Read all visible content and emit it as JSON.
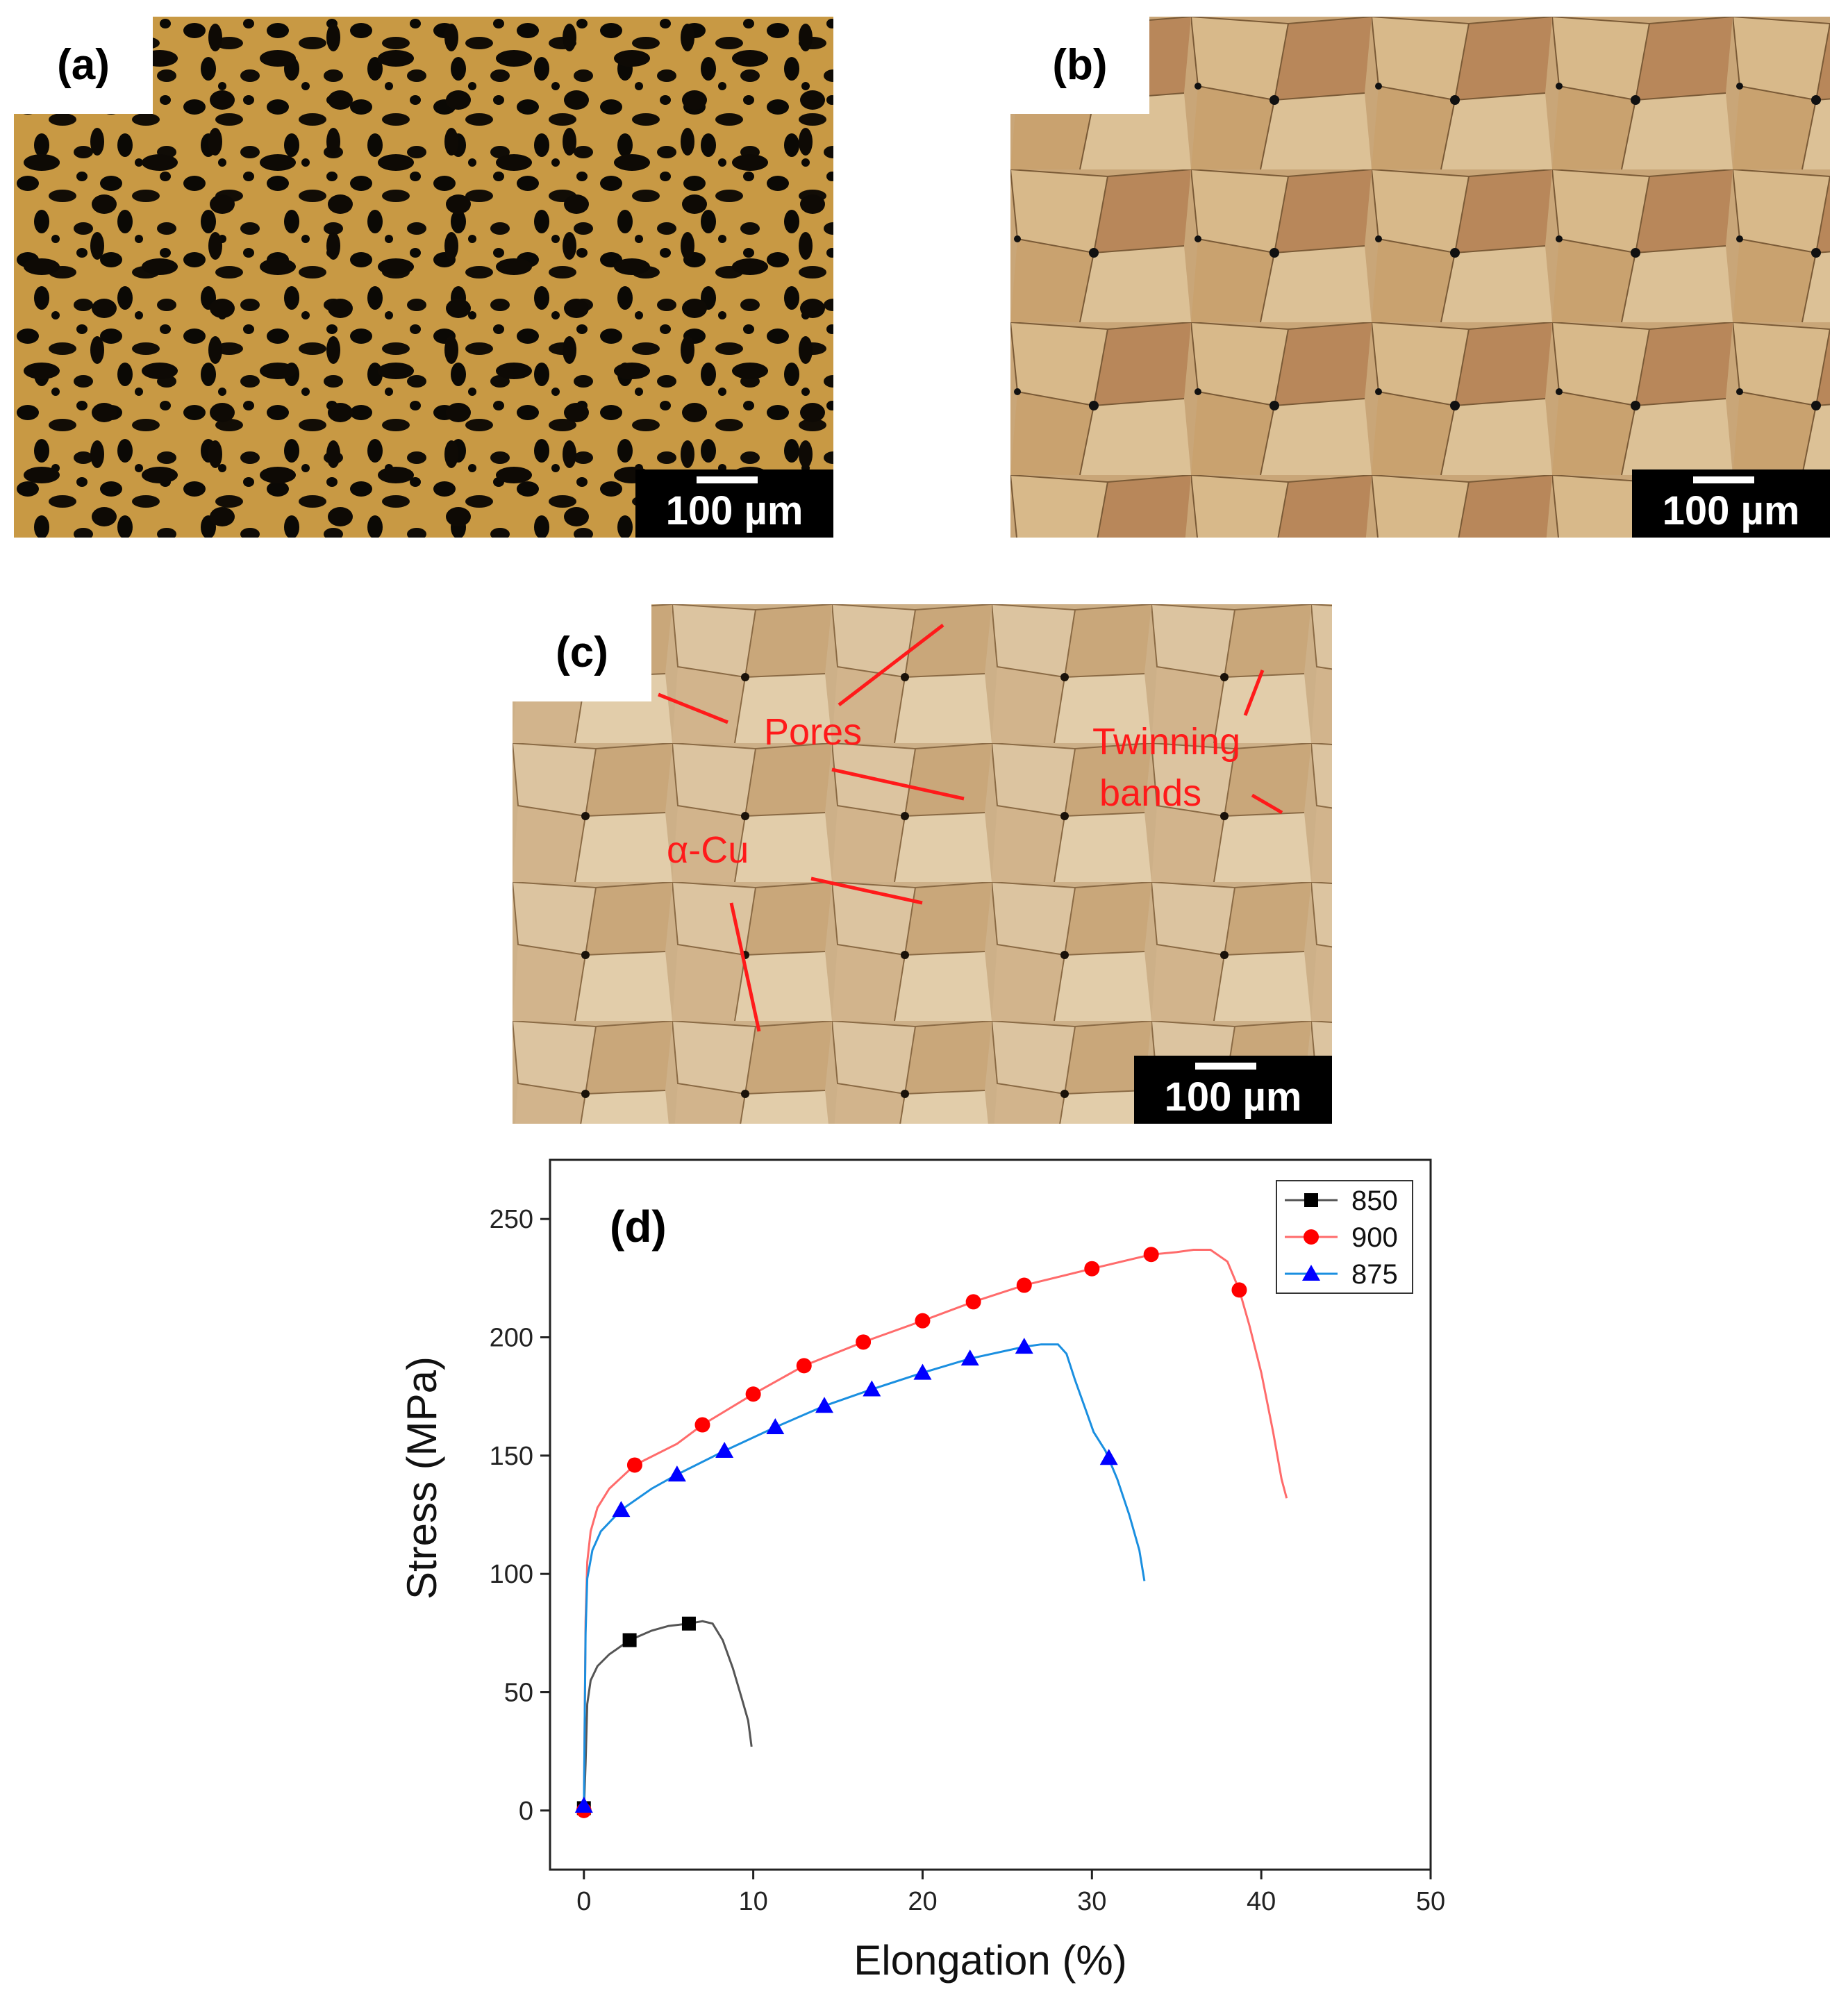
{
  "panels": {
    "a": {
      "label": "(a)",
      "scale": "100 µm"
    },
    "b": {
      "label": "(b)",
      "scale": "100 µm"
    },
    "c": {
      "label": "(c)",
      "scale": "100 µm",
      "annotations": {
        "pores": "Pores",
        "twinning_line1": "Twinning",
        "twinning_line2": "bands",
        "alpha_cu": "α-Cu"
      }
    }
  },
  "colors": {
    "annot": "#ff1a1a",
    "s850": "#000000",
    "s900": "#ff0000",
    "s875": "#0a7fd4"
  },
  "chart_data": {
    "type": "line",
    "panel_label": "(d)",
    "xlabel": "Elongation (%)",
    "ylabel": "Stress (MPa)",
    "xlim": [
      -2,
      50
    ],
    "ylim": [
      -25,
      275
    ],
    "xticks": [
      0,
      10,
      20,
      30,
      40,
      50
    ],
    "yticks": [
      0,
      50,
      100,
      150,
      200,
      250
    ],
    "legend": "top-right",
    "series": [
      {
        "name": "850",
        "color": "#000000",
        "line_color": "#555555",
        "marker": "square",
        "points": [
          [
            0,
            0
          ],
          [
            0.1,
            20
          ],
          [
            0.2,
            45
          ],
          [
            0.4,
            55
          ],
          [
            0.8,
            61
          ],
          [
            1.5,
            66
          ],
          [
            2.7,
            72
          ],
          [
            4,
            76
          ],
          [
            5,
            78
          ],
          [
            6.2,
            79
          ],
          [
            7,
            80
          ],
          [
            7.6,
            79
          ],
          [
            8.2,
            72
          ],
          [
            8.8,
            60
          ],
          [
            9.3,
            48
          ],
          [
            9.7,
            38
          ],
          [
            9.9,
            27
          ]
        ],
        "markers": [
          [
            0,
            1
          ],
          [
            2.7,
            72
          ],
          [
            6.2,
            79
          ]
        ]
      },
      {
        "name": "900",
        "color": "#ff0000",
        "line_color": "#ff6b6b",
        "marker": "circle",
        "points": [
          [
            0,
            0
          ],
          [
            0.05,
            40
          ],
          [
            0.1,
            80
          ],
          [
            0.2,
            105
          ],
          [
            0.4,
            118
          ],
          [
            0.8,
            128
          ],
          [
            1.5,
            136
          ],
          [
            3,
            146
          ],
          [
            5.5,
            155
          ],
          [
            7,
            163
          ],
          [
            10,
            176
          ],
          [
            13,
            188
          ],
          [
            16.5,
            198
          ],
          [
            20,
            207
          ],
          [
            23,
            215
          ],
          [
            26,
            222
          ],
          [
            30,
            229
          ],
          [
            33.5,
            235
          ],
          [
            35,
            236
          ],
          [
            36,
            237
          ],
          [
            37,
            237
          ],
          [
            38,
            232
          ],
          [
            38.7,
            220
          ],
          [
            39.3,
            205
          ],
          [
            40,
            185
          ],
          [
            40.7,
            160
          ],
          [
            41.2,
            140
          ],
          [
            41.5,
            132
          ]
        ],
        "markers": [
          [
            0,
            0
          ],
          [
            3,
            146
          ],
          [
            7,
            163
          ],
          [
            10,
            176
          ],
          [
            13,
            188
          ],
          [
            16.5,
            198
          ],
          [
            20,
            207
          ],
          [
            23,
            215
          ],
          [
            26,
            222
          ],
          [
            30,
            229
          ],
          [
            33.5,
            235
          ],
          [
            38.7,
            220
          ]
        ]
      },
      {
        "name": "875",
        "color": "#0000ff",
        "line_color": "#1a8fe0",
        "marker": "triangle",
        "points": [
          [
            0,
            0
          ],
          [
            0.05,
            40
          ],
          [
            0.1,
            75
          ],
          [
            0.2,
            98
          ],
          [
            0.5,
            110
          ],
          [
            1,
            118
          ],
          [
            2.2,
            127
          ],
          [
            4,
            136
          ],
          [
            5.5,
            142
          ],
          [
            8.3,
            152
          ],
          [
            11.3,
            162
          ],
          [
            14.2,
            171
          ],
          [
            17,
            178
          ],
          [
            20,
            185
          ],
          [
            22.8,
            191
          ],
          [
            26,
            196
          ],
          [
            27,
            197
          ],
          [
            28,
            197
          ],
          [
            28.5,
            193
          ],
          [
            29,
            182
          ],
          [
            29.6,
            170
          ],
          [
            30.1,
            160
          ],
          [
            30.8,
            152
          ],
          [
            31.5,
            140
          ],
          [
            32.2,
            125
          ],
          [
            32.8,
            110
          ],
          [
            33.1,
            97
          ]
        ],
        "markers": [
          [
            0,
            2
          ],
          [
            2.2,
            127
          ],
          [
            5.5,
            142
          ],
          [
            8.3,
            152
          ],
          [
            11.3,
            162
          ],
          [
            14.2,
            171
          ],
          [
            17,
            178
          ],
          [
            20,
            185
          ],
          [
            22.8,
            191
          ],
          [
            26,
            196
          ],
          [
            31,
            149
          ]
        ]
      }
    ]
  }
}
